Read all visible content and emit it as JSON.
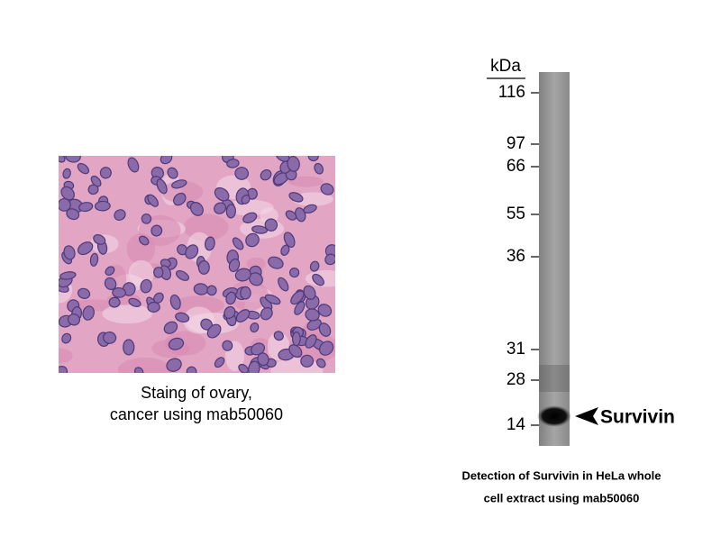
{
  "histology": {
    "caption": [
      "Staing of ovary,",
      "cancer using mab50060"
    ]
  },
  "blot": {
    "unit": "kDa",
    "markers": [
      "116",
      "97",
      "66",
      "55",
      "36",
      "31",
      "28",
      "14"
    ],
    "band_label": "Survivin",
    "caption": [
      "Detection of Survivin in HeLa whole",
      "cell extract using mab50060"
    ]
  }
}
